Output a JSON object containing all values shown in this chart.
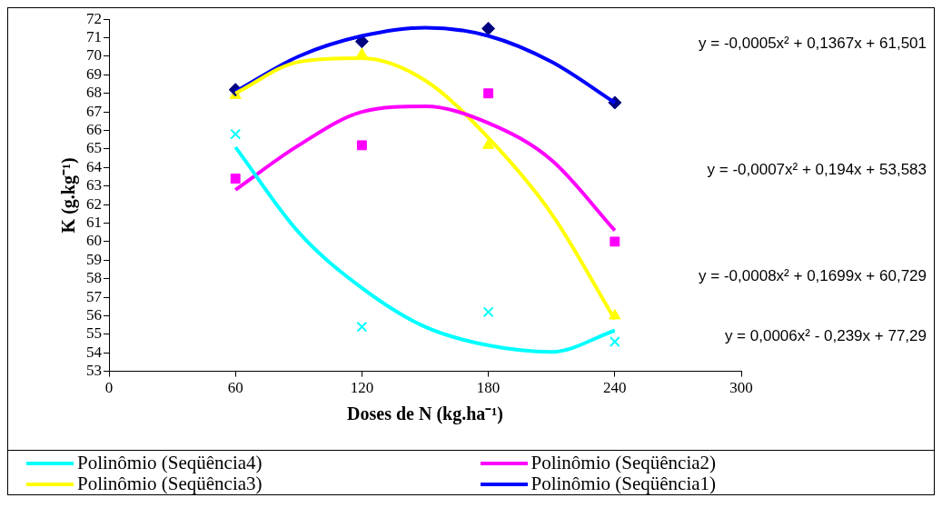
{
  "chart_data": {
    "type": "scatter",
    "xlabel": "Doses de N (kg.ha⁻¹)",
    "ylabel": "K (g.kg⁻¹)",
    "xlim": [
      0,
      300
    ],
    "xticks": [
      0,
      60,
      120,
      180,
      240,
      300
    ],
    "ylim": [
      53,
      72
    ],
    "yticks": [
      53,
      54,
      55,
      56,
      57,
      58,
      59,
      60,
      61,
      62,
      63,
      64,
      65,
      66,
      67,
      68,
      69,
      70,
      71,
      72
    ],
    "grid": false,
    "legend": "bottom",
    "series": [
      {
        "type": "line",
        "name": "Polinômio (Seqüência4)",
        "color": "#00ffff",
        "marker": "none",
        "x": [
          60,
          90,
          120,
          150,
          180,
          210,
          240
        ],
        "values": [
          65.1,
          60.5,
          57.5,
          55.4,
          54.4,
          54.05,
          55.2
        ]
      },
      {
        "type": "line",
        "name": "Polinômio (Seqüência2)",
        "color": "#ff00ff",
        "marker": "none",
        "x": [
          60,
          90,
          120,
          150,
          180,
          210,
          240
        ],
        "values": [
          62.8,
          65.2,
          67.0,
          67.3,
          66.4,
          64.4,
          60.6
        ]
      },
      {
        "type": "line",
        "name": "Polinômio (Seqüência3)",
        "color": "#ffff00",
        "marker": "none",
        "x": [
          60,
          90,
          120,
          150,
          180,
          210,
          240
        ],
        "values": [
          68.0,
          69.7,
          69.9,
          68.7,
          65.6,
          61.5,
          55.8
        ]
      },
      {
        "type": "line",
        "name": "Polinômio (Seqüência1)",
        "color": "#0000ff",
        "marker": "none",
        "x": [
          60,
          90,
          120,
          150,
          180,
          210,
          240
        ],
        "values": [
          68.1,
          70.0,
          71.1,
          71.55,
          71.1,
          69.7,
          67.5
        ]
      },
      {
        "type": "scatter",
        "color": "#000080",
        "marker": "diamond",
        "x": [
          60,
          120,
          180,
          240
        ],
        "values": [
          68.2,
          70.8,
          71.5,
          67.5
        ]
      },
      {
        "type": "scatter",
        "color": "#ff00ff",
        "marker": "square",
        "x": [
          60,
          120,
          180,
          240
        ],
        "values": [
          63.4,
          65.2,
          68.0,
          60.0
        ]
      },
      {
        "type": "scatter",
        "color": "#ffff00",
        "marker": "triangle",
        "x": [
          60,
          120,
          180,
          240
        ],
        "values": [
          67.9,
          70.1,
          65.2,
          56.0
        ]
      },
      {
        "type": "scatter",
        "color": "#00ffff",
        "marker": "cross",
        "x": [
          60,
          120,
          180,
          240
        ],
        "values": [
          65.8,
          55.4,
          56.2,
          54.6
        ]
      }
    ],
    "annotations": [
      "y = -0,0005x² + 0,1367x + 61,501",
      "y = -0,0007x² + 0,194x + 53,583",
      "y = -0,0008x² + 0,1699x + 60,729",
      "y = 0,0006x² - 0,239x + 77,29"
    ]
  }
}
